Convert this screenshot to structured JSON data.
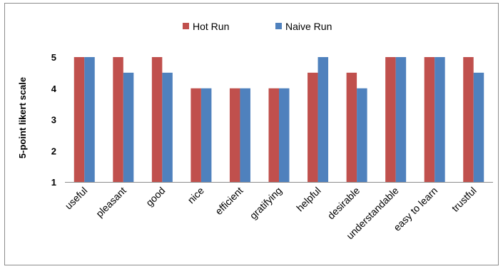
{
  "chart_data": {
    "type": "bar",
    "title": "",
    "xlabel": "",
    "ylabel": "5-point likert scale",
    "ylim": [
      1,
      5
    ],
    "yticks": [
      1,
      2,
      3,
      4,
      5
    ],
    "grid": false,
    "legend_position": "top",
    "categories": [
      "useful",
      "pleasant",
      "good",
      "nice",
      "efficient",
      "gratifying",
      "helpful",
      "desirable",
      "understandable",
      "easy to learn",
      "trustful"
    ],
    "series": [
      {
        "name": "Hot Run",
        "color": "#c0504d",
        "values": [
          5,
          5,
          5,
          4,
          4,
          4,
          4.5,
          4.5,
          5,
          5,
          5
        ]
      },
      {
        "name": "Naive Run",
        "color": "#4f81bd",
        "values": [
          5,
          4.5,
          4.5,
          4,
          4,
          4,
          5,
          4,
          5,
          5,
          4.5
        ]
      }
    ]
  }
}
